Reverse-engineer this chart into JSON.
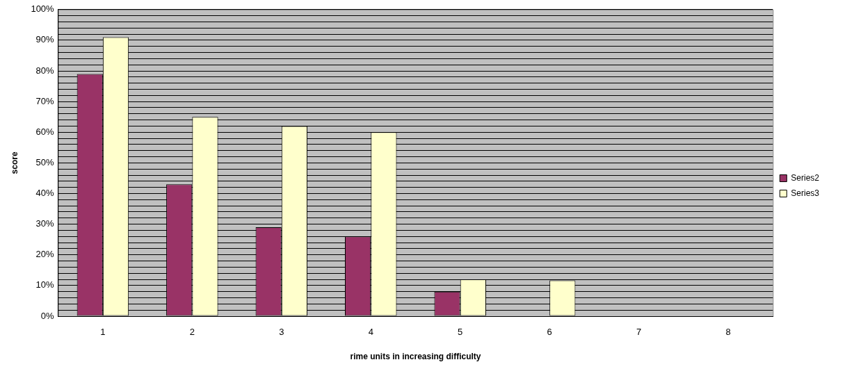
{
  "chart_data": {
    "type": "bar",
    "xlabel": "rime units in increasing difficulty",
    "ylabel": "score",
    "categories": [
      "1",
      "2",
      "3",
      "4",
      "5",
      "6",
      "7",
      "8"
    ],
    "series": [
      {
        "name": "Series2",
        "color": "#993366",
        "values": [
          79,
          43,
          29,
          26,
          8,
          0,
          0,
          0
        ]
      },
      {
        "name": "Series3",
        "color": "#ffffcc",
        "values": [
          91,
          65,
          62,
          60,
          12,
          11.7,
          0,
          0
        ]
      }
    ],
    "ylim": [
      0,
      100
    ],
    "yticks": [
      {
        "value": 0,
        "label": "0%"
      },
      {
        "value": 2,
        "label": null
      },
      {
        "value": 4,
        "label": null
      },
      {
        "value": 6,
        "label": null
      },
      {
        "value": 8,
        "label": null
      },
      {
        "value": 10,
        "label": "10%"
      },
      {
        "value": 12,
        "label": null
      },
      {
        "value": 14,
        "label": null
      },
      {
        "value": 16,
        "label": null
      },
      {
        "value": 18,
        "label": null
      },
      {
        "value": 20,
        "label": "20%"
      },
      {
        "value": 22,
        "label": null
      },
      {
        "value": 24,
        "label": null
      },
      {
        "value": 26,
        "label": null
      },
      {
        "value": 28,
        "label": null
      },
      {
        "value": 30,
        "label": "30%"
      },
      {
        "value": 32,
        "label": null
      },
      {
        "value": 34,
        "label": null
      },
      {
        "value": 36,
        "label": null
      },
      {
        "value": 38,
        "label": null
      },
      {
        "value": 40,
        "label": "40%"
      },
      {
        "value": 42,
        "label": null
      },
      {
        "value": 44,
        "label": null
      },
      {
        "value": 46,
        "label": null
      },
      {
        "value": 48,
        "label": null
      },
      {
        "value": 50,
        "label": "50%"
      },
      {
        "value": 52,
        "label": null
      },
      {
        "value": 54,
        "label": null
      },
      {
        "value": 56,
        "label": null
      },
      {
        "value": 58,
        "label": null
      },
      {
        "value": 60,
        "label": "60%"
      },
      {
        "value": 62,
        "label": null
      },
      {
        "value": 64,
        "label": null
      },
      {
        "value": 66,
        "label": null
      },
      {
        "value": 68,
        "label": null
      },
      {
        "value": 70,
        "label": "70%"
      },
      {
        "value": 72,
        "label": null
      },
      {
        "value": 74,
        "label": null
      },
      {
        "value": 76,
        "label": null
      },
      {
        "value": 78,
        "label": null
      },
      {
        "value": 80,
        "label": "80%"
      },
      {
        "value": 82,
        "label": null
      },
      {
        "value": 84,
        "label": null
      },
      {
        "value": 86,
        "label": null
      },
      {
        "value": 88,
        "label": null
      },
      {
        "value": 90,
        "label": "90%"
      },
      {
        "value": 92,
        "label": null
      },
      {
        "value": 94,
        "label": null
      },
      {
        "value": 96,
        "label": null
      },
      {
        "value": 98,
        "label": null
      },
      {
        "value": 100,
        "label": "100%"
      }
    ],
    "grid": "y",
    "legend": "right"
  }
}
